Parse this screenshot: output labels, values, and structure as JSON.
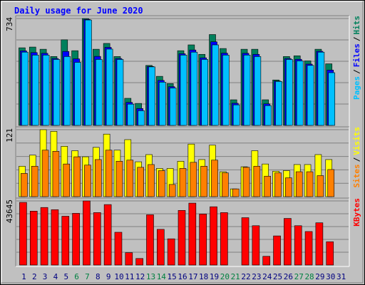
{
  "title": "Daily usage for June 2020",
  "chart_data": [
    {
      "type": "bar",
      "ylim": [
        0,
        734
      ],
      "yticks": [
        734
      ],
      "legend_separator": "/",
      "series": [
        {
          "name": "Hits",
          "color": "#00805c",
          "values": [
            533,
            538,
            523,
            473,
            588,
            513,
            734,
            523,
            563,
            473,
            186,
            151,
            412,
            337,
            287,
            513,
            553,
            488,
            624,
            528,
            176,
            523,
            523,
            176,
            312,
            473,
            478,
            443,
            523,
            423,
            0
          ]
        },
        {
          "name": "Files",
          "color": "#0000ff",
          "values": [
            512,
            500,
            495,
            459,
            508,
            457,
            728,
            474,
            536,
            459,
            158,
            116,
            405,
            309,
            266,
            492,
            518,
            464,
            574,
            496,
            152,
            495,
            488,
            148,
            305,
            459,
            454,
            421,
            509,
            380,
            0
          ]
        },
        {
          "name": "Pages",
          "color": "#00c0ff",
          "values": [
            503,
            483,
            483,
            453,
            473,
            433,
            724,
            453,
            524,
            453,
            146,
            101,
            402,
            297,
            257,
            483,
            503,
            453,
            553,
            483,
            141,
            483,
            473,
            136,
            302,
            453,
            443,
            412,
            503,
            362,
            0
          ]
        }
      ]
    },
    {
      "type": "bar",
      "ylim": [
        0,
        121
      ],
      "yticks": [
        121
      ],
      "legend_separator": "/",
      "series": [
        {
          "name": "Visits",
          "color": "#ffff00",
          "values": [
            55,
            75,
            121,
            118,
            91,
            83,
            72,
            89,
            113,
            84,
            103,
            63,
            76,
            51,
            51,
            64,
            95,
            67,
            93,
            45,
            14,
            54,
            83,
            59,
            46,
            47,
            58,
            58,
            76,
            67,
            0
          ]
        },
        {
          "name": "Sites",
          "color": "#ff8000",
          "values": [
            42,
            55,
            84,
            82,
            59,
            72,
            57,
            67,
            84,
            64,
            66,
            53,
            58,
            47,
            22,
            51,
            62,
            55,
            66,
            43,
            14,
            53,
            55,
            37,
            43,
            34,
            45,
            45,
            38,
            49,
            0
          ]
        }
      ]
    },
    {
      "type": "bar",
      "ylim": [
        0,
        43645
      ],
      "yticks": [
        43645
      ],
      "legend_separator": "/",
      "categories": [
        "1",
        "2",
        "3",
        "4",
        "5",
        "6",
        "7",
        "8",
        "9",
        "10",
        "11",
        "12",
        "13",
        "14",
        "15",
        "16",
        "17",
        "18",
        "19",
        "20",
        "21",
        "22",
        "23",
        "24",
        "25",
        "26",
        "27",
        "28",
        "29",
        "30",
        "31"
      ],
      "label_colors": [
        "#000080",
        "#000080",
        "#000080",
        "#000080",
        "#000080",
        "#008040",
        "#008040",
        "#000080",
        "#000080",
        "#000080",
        "#000080",
        "#000080",
        "#008040",
        "#008040",
        "#000080",
        "#000080",
        "#000080",
        "#000080",
        "#000080",
        "#008040",
        "#008040",
        "#000080",
        "#000080",
        "#000080",
        "#000080",
        "#000080",
        "#008040",
        "#008040",
        "#000080",
        "#000080",
        "#000080"
      ],
      "series": [
        {
          "name": "KBytes",
          "color": "#ff0000",
          "values": [
            42656,
            36704,
            39184,
            37696,
            33232,
            35216,
            43645,
            35712,
            41168,
            22320,
            8432,
            4464,
            34224,
            24304,
            17856,
            37200,
            42160,
            34720,
            39680,
            35712,
            0,
            32240,
            26784,
            5952,
            19840,
            31744,
            26784,
            22816,
            28768,
            15872,
            0
          ]
        }
      ]
    }
  ]
}
